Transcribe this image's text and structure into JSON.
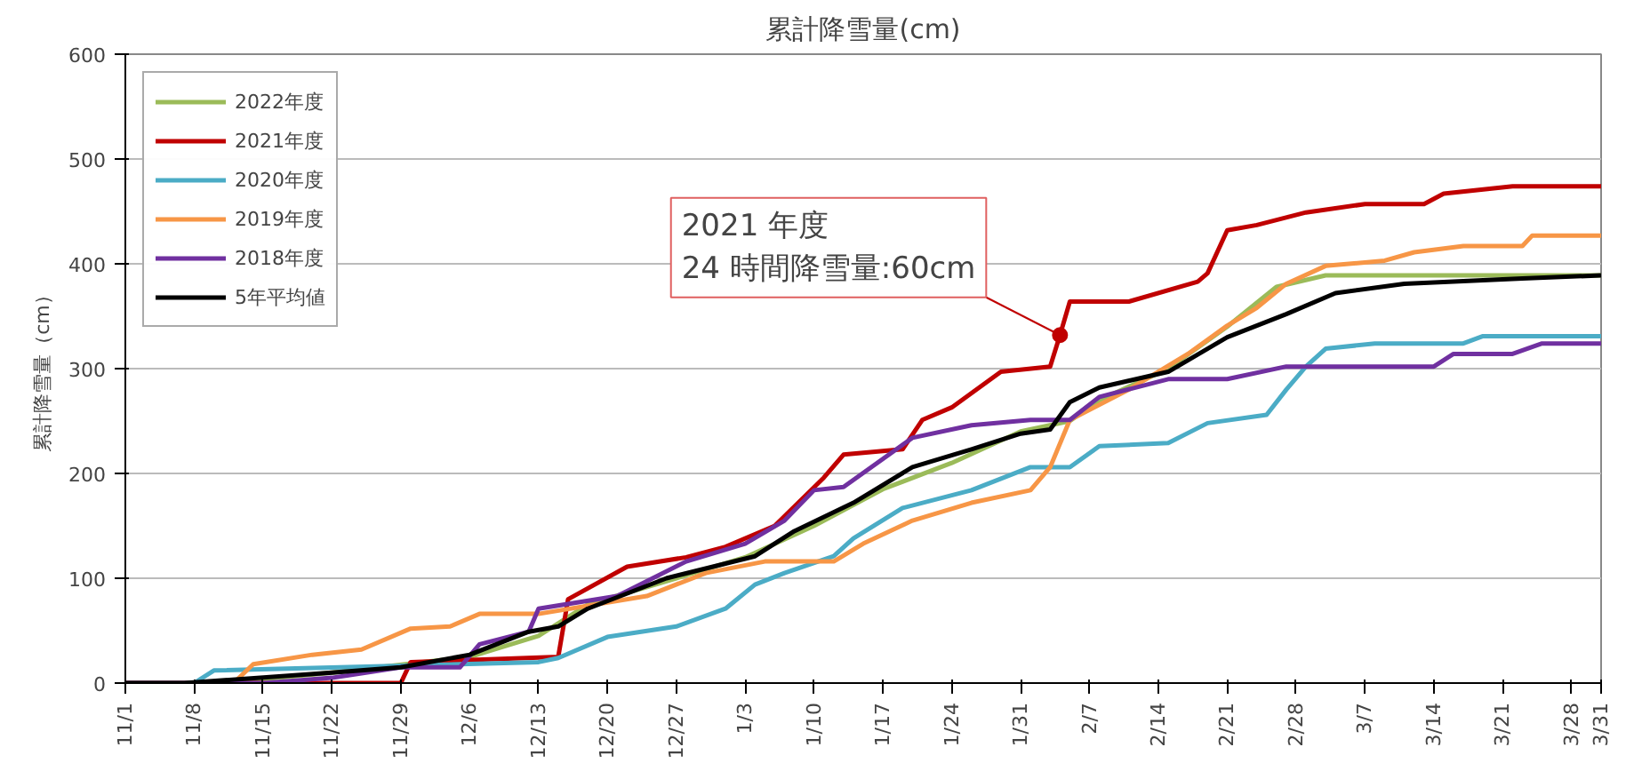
{
  "chart_data": {
    "type": "line",
    "title": "累計降雪量(cm)",
    "ylabel": "累計降雪量（cm）",
    "ylim": [
      0,
      600
    ],
    "yticks": [
      0,
      100,
      200,
      300,
      400,
      500,
      600
    ],
    "xlim": [
      "2022-11-01",
      "2023-03-31"
    ],
    "xticks": [
      {
        "value": "2022-11-01",
        "label": "11/1"
      },
      {
        "value": "2022-11-08",
        "label": "11/8"
      },
      {
        "value": "2022-11-15",
        "label": "11/15"
      },
      {
        "value": "2022-11-22",
        "label": "11/22"
      },
      {
        "value": "2022-11-29",
        "label": "11/29"
      },
      {
        "value": "2022-12-06",
        "label": "12/6"
      },
      {
        "value": "2022-12-13",
        "label": "12/13"
      },
      {
        "value": "2022-12-20",
        "label": "12/20"
      },
      {
        "value": "2022-12-27",
        "label": "12/27"
      },
      {
        "value": "2023-01-03",
        "label": "1/3"
      },
      {
        "value": "2023-01-10",
        "label": "1/10"
      },
      {
        "value": "2023-01-17",
        "label": "1/17"
      },
      {
        "value": "2023-01-24",
        "label": "1/24"
      },
      {
        "value": "2023-01-31",
        "label": "1/31"
      },
      {
        "value": "2023-02-07",
        "label": "2/7"
      },
      {
        "value": "2023-02-14",
        "label": "2/14"
      },
      {
        "value": "2023-02-21",
        "label": "2/21"
      },
      {
        "value": "2023-02-28",
        "label": "2/28"
      },
      {
        "value": "2023-03-07",
        "label": "3/7"
      },
      {
        "value": "2023-03-14",
        "label": "3/14"
      },
      {
        "value": "2023-03-21",
        "label": "3/21"
      },
      {
        "value": "2023-03-28",
        "label": "3/28"
      },
      {
        "value": "2023-03-31",
        "label": "3/31"
      }
    ],
    "grid": "y",
    "legend": "top left",
    "line_style": "solid",
    "annotations": [
      {
        "text": "2021 年度\n24 時間降雪量:60cm",
        "x": "2023-02-04",
        "y": 332
      }
    ],
    "series": [
      {
        "name": "2022年度",
        "color": "#9bbb59",
        "x": [
          "2022-11-01",
          "2022-11-11",
          "2022-11-22",
          "2022-12-06",
          "2022-12-13",
          "2022-12-18",
          "2022-12-27",
          "2023-01-03",
          "2023-01-10",
          "2023-01-17",
          "2023-01-24",
          "2023-01-31",
          "2023-02-05",
          "2023-02-08",
          "2023-02-15",
          "2023-02-21",
          "2023-02-26",
          "2023-03-03",
          "2023-03-31"
        ],
        "values": [
          0,
          0,
          10,
          25,
          45,
          75,
          100,
          120,
          150,
          185,
          210,
          240,
          250,
          270,
          300,
          340,
          378,
          389,
          389
        ]
      },
      {
        "name": "2021年度",
        "color": "#c00000",
        "x": [
          "2022-11-01",
          "2022-11-29",
          "2022-11-30",
          "2022-12-15",
          "2022-12-16",
          "2022-12-22",
          "2022-12-28",
          "2023-01-01",
          "2023-01-06",
          "2023-01-11",
          "2023-01-13",
          "2023-01-19",
          "2023-01-21",
          "2023-01-24",
          "2023-01-29",
          "2023-02-03",
          "2023-02-04",
          "2023-02-05",
          "2023-02-11",
          "2023-02-18",
          "2023-02-19",
          "2023-02-21",
          "2023-02-24",
          "2023-03-01",
          "2023-03-07",
          "2023-03-13",
          "2023-03-15",
          "2023-03-22",
          "2023-03-31"
        ],
        "values": [
          0,
          0,
          20,
          25,
          80,
          111,
          120,
          130,
          150,
          196,
          218,
          223,
          251,
          263,
          297,
          302,
          332,
          364,
          364,
          383,
          391,
          432,
          437,
          449,
          457,
          457,
          467,
          474,
          474
        ]
      },
      {
        "name": "2020年度",
        "color": "#4bacc6",
        "x": [
          "2022-11-01",
          "2022-11-08",
          "2022-11-10",
          "2022-12-13",
          "2022-12-15",
          "2022-12-20",
          "2022-12-27",
          "2023-01-01",
          "2023-01-04",
          "2023-01-07",
          "2023-01-12",
          "2023-01-14",
          "2023-01-19",
          "2023-01-26",
          "2023-02-01",
          "2023-02-05",
          "2023-02-08",
          "2023-02-15",
          "2023-02-19",
          "2023-02-25",
          "2023-02-27",
          "2023-03-01",
          "2023-03-03",
          "2023-03-08",
          "2023-03-17",
          "2023-03-19",
          "2023-03-31"
        ],
        "values": [
          0,
          0,
          12,
          20,
          24,
          44,
          54,
          71,
          94,
          105,
          121,
          138,
          167,
          184,
          206,
          206,
          226,
          229,
          248,
          256,
          280,
          302,
          319,
          324,
          324,
          331,
          331
        ]
      },
      {
        "name": "2019年度",
        "color": "#f79646",
        "x": [
          "2022-11-01",
          "2022-11-12",
          "2022-11-14",
          "2022-11-20",
          "2022-11-25",
          "2022-11-30",
          "2022-12-04",
          "2022-12-07",
          "2022-12-13",
          "2022-12-24",
          "2022-12-30",
          "2023-01-05",
          "2023-01-12",
          "2023-01-15",
          "2023-01-20",
          "2023-01-26",
          "2023-02-01",
          "2023-02-03",
          "2023-02-05",
          "2023-02-11",
          "2023-02-17",
          "2023-02-21",
          "2023-02-24",
          "2023-02-27",
          "2023-03-03",
          "2023-03-09",
          "2023-03-12",
          "2023-03-17",
          "2023-03-23",
          "2023-03-24",
          "2023-03-31"
        ],
        "values": [
          0,
          0,
          18,
          27,
          32,
          52,
          54,
          66,
          66,
          83,
          105,
          116,
          116,
          133,
          155,
          172,
          184,
          206,
          251,
          280,
          314,
          341,
          358,
          381,
          398,
          403,
          411,
          417,
          417,
          427,
          427
        ]
      },
      {
        "name": "2018年度",
        "color": "#7030a0",
        "x": [
          "2022-11-01",
          "2022-11-15",
          "2022-11-22",
          "2022-11-29",
          "2022-12-05",
          "2022-12-07",
          "2022-12-12",
          "2022-12-13",
          "2022-12-21",
          "2022-12-28",
          "2023-01-03",
          "2023-01-07",
          "2023-01-10",
          "2023-01-13",
          "2023-01-20",
          "2023-01-26",
          "2023-02-01",
          "2023-02-05",
          "2023-02-08",
          "2023-02-15",
          "2023-02-21",
          "2023-02-27",
          "2023-03-14",
          "2023-03-16",
          "2023-03-22",
          "2023-03-25",
          "2023-03-31"
        ],
        "values": [
          0,
          0,
          5,
          15,
          15,
          37,
          49,
          71,
          83,
          116,
          133,
          155,
          184,
          187,
          234,
          246,
          251,
          251,
          273,
          290,
          290,
          302,
          302,
          314,
          314,
          324,
          324
        ]
      },
      {
        "name": "5年平均値",
        "color": "#000000",
        "x": [
          "2022-11-01",
          "2022-11-07",
          "2022-11-22",
          "2022-11-29",
          "2022-12-06",
          "2022-12-12",
          "2022-12-15",
          "2022-12-18",
          "2022-12-26",
          "2023-01-04",
          "2023-01-08",
          "2023-01-14",
          "2023-01-20",
          "2023-01-26",
          "2023-01-31",
          "2023-02-03",
          "2023-02-05",
          "2023-02-08",
          "2023-02-15",
          "2023-02-21",
          "2023-02-27",
          "2023-03-04",
          "2023-03-11",
          "2023-03-23",
          "2023-03-31"
        ],
        "values": [
          0,
          0,
          10,
          15,
          27,
          49,
          54,
          71,
          100,
          121,
          145,
          172,
          206,
          223,
          238,
          242,
          268,
          282,
          297,
          330,
          352,
          372,
          381,
          386,
          389
        ]
      }
    ]
  }
}
